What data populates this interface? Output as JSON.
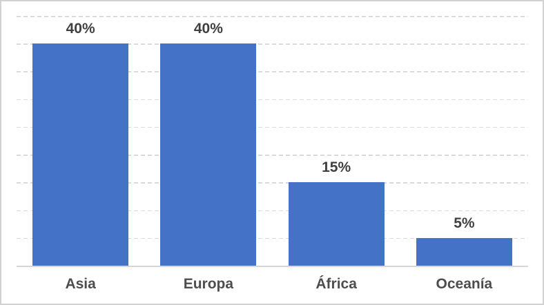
{
  "chart_data": {
    "type": "bar",
    "title": "",
    "xlabel": "",
    "ylabel": "",
    "categories": [
      "Asia",
      "Europa",
      "África",
      "Oceanía"
    ],
    "values": [
      40,
      40,
      15,
      5
    ],
    "data_labels": [
      "40%",
      "40%",
      "15%",
      "5%"
    ],
    "ylim": [
      0,
      45
    ],
    "gridline_step": 5,
    "grid": true,
    "y_axis_tick_labels_visible": false,
    "legend": "none",
    "colors": {
      "bar": "#4472C4",
      "gridline": "#D9D9D9",
      "axis_line": "#D6D6D6",
      "data_label_text": "#404040",
      "category_label_text": "#4D4D4D",
      "background": "#FFFFFF",
      "frame_border": "#D1D1D1"
    }
  }
}
